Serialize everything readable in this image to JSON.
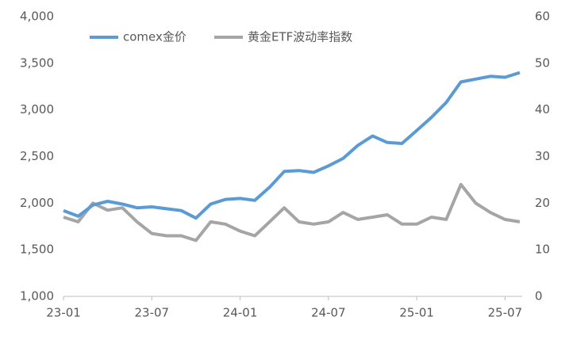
{
  "chart_data": {
    "type": "line",
    "categories": [
      "23-01",
      null,
      null,
      null,
      null,
      null,
      "23-07",
      null,
      null,
      null,
      null,
      null,
      "24-01",
      null,
      null,
      null,
      null,
      null,
      "24-07",
      null,
      null,
      null,
      null,
      null,
      "25-01",
      null,
      null,
      null,
      null,
      null,
      "25-07",
      null
    ],
    "series": [
      {
        "name": "comex金价",
        "color": "#5b9bd5",
        "axis": "y",
        "values": [
          1920,
          1860,
          1980,
          2020,
          1990,
          1950,
          1960,
          1940,
          1920,
          1840,
          1990,
          2040,
          2050,
          2030,
          2170,
          2340,
          2350,
          2330,
          2400,
          2480,
          2620,
          2720,
          2650,
          2640,
          2780,
          2920,
          3080,
          3300,
          3330,
          3360,
          3350,
          3400
        ]
      },
      {
        "name": "黄金ETF波动率指数",
        "color": "#a5a5a5",
        "axis": "y2",
        "values": [
          17,
          16,
          20,
          18.5,
          19,
          16,
          13.5,
          13,
          13,
          12,
          16,
          15.5,
          14,
          13,
          16,
          19,
          16,
          15.5,
          16,
          18,
          16.5,
          17,
          17.5,
          15.5,
          15.5,
          17,
          16.5,
          24,
          20,
          18,
          16.5,
          16
        ]
      }
    ],
    "ylim": [
      1000,
      4000
    ],
    "yticks": [
      {
        "value": 1000,
        "label": "1,000"
      },
      {
        "value": 1500,
        "label": "1,500"
      },
      {
        "value": 2000,
        "label": "2,000"
      },
      {
        "value": 2500,
        "label": "2,500"
      },
      {
        "value": 3000,
        "label": "3,000"
      },
      {
        "value": 3500,
        "label": "3,500"
      },
      {
        "value": 4000,
        "label": "4,000"
      }
    ],
    "y2lim": [
      0,
      60
    ],
    "y2ticks": [
      0,
      10,
      20,
      30,
      40,
      50,
      60
    ],
    "grid": false,
    "legend": "top"
  }
}
